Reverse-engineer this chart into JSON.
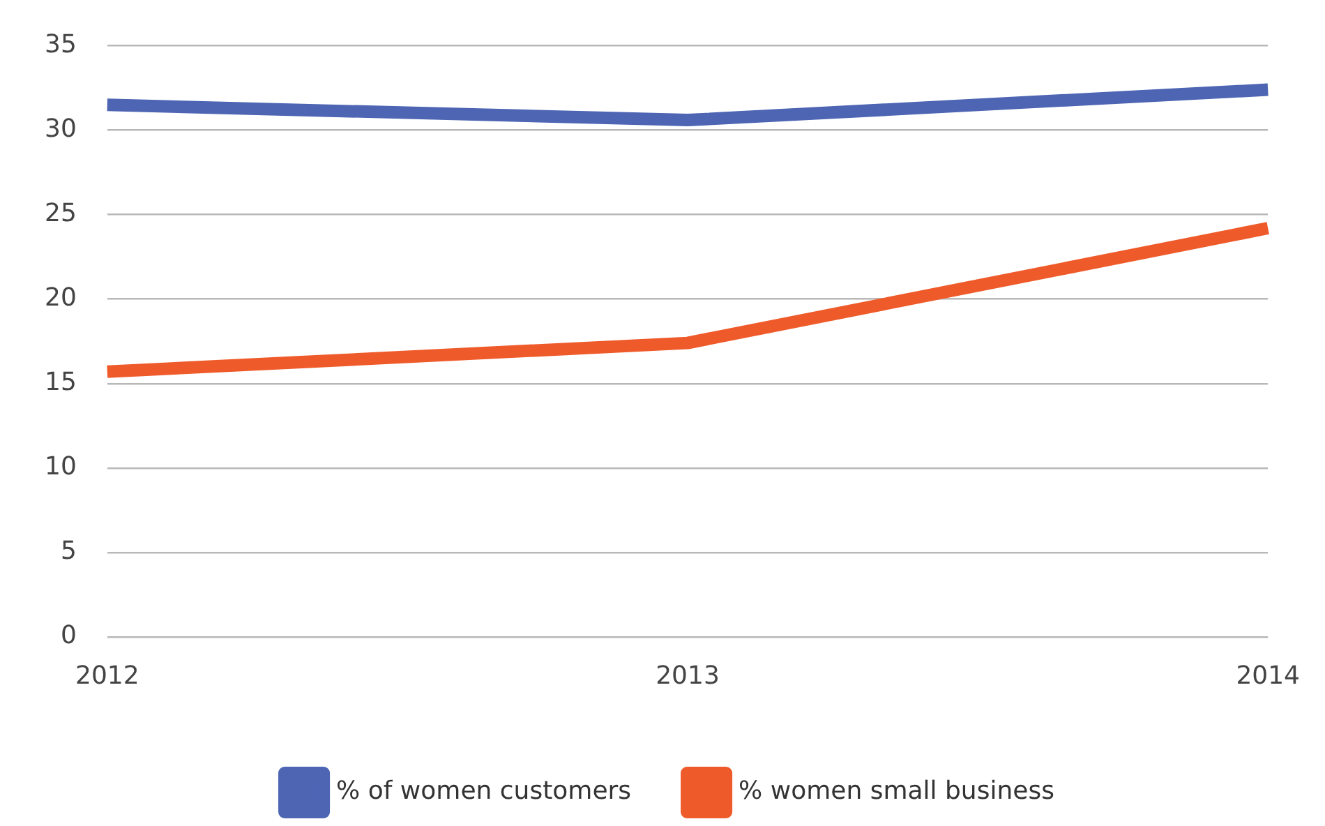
{
  "chart_data": {
    "type": "line",
    "categories": [
      "2012",
      "2013",
      "2014"
    ],
    "series": [
      {
        "name": "% of women customers",
        "color": "#4d65b3",
        "values": [
          31.5,
          30.6,
          32.4
        ]
      },
      {
        "name": "% women small business",
        "color": "#ef5a2a",
        "values": [
          15.7,
          17.4,
          24.2
        ]
      }
    ],
    "ylim": [
      0,
      35
    ],
    "yticks": [
      0,
      5,
      10,
      15,
      20,
      25,
      30,
      35
    ],
    "grid": "y",
    "legend": "bottom",
    "marker": "none",
    "line_style": "solid"
  }
}
